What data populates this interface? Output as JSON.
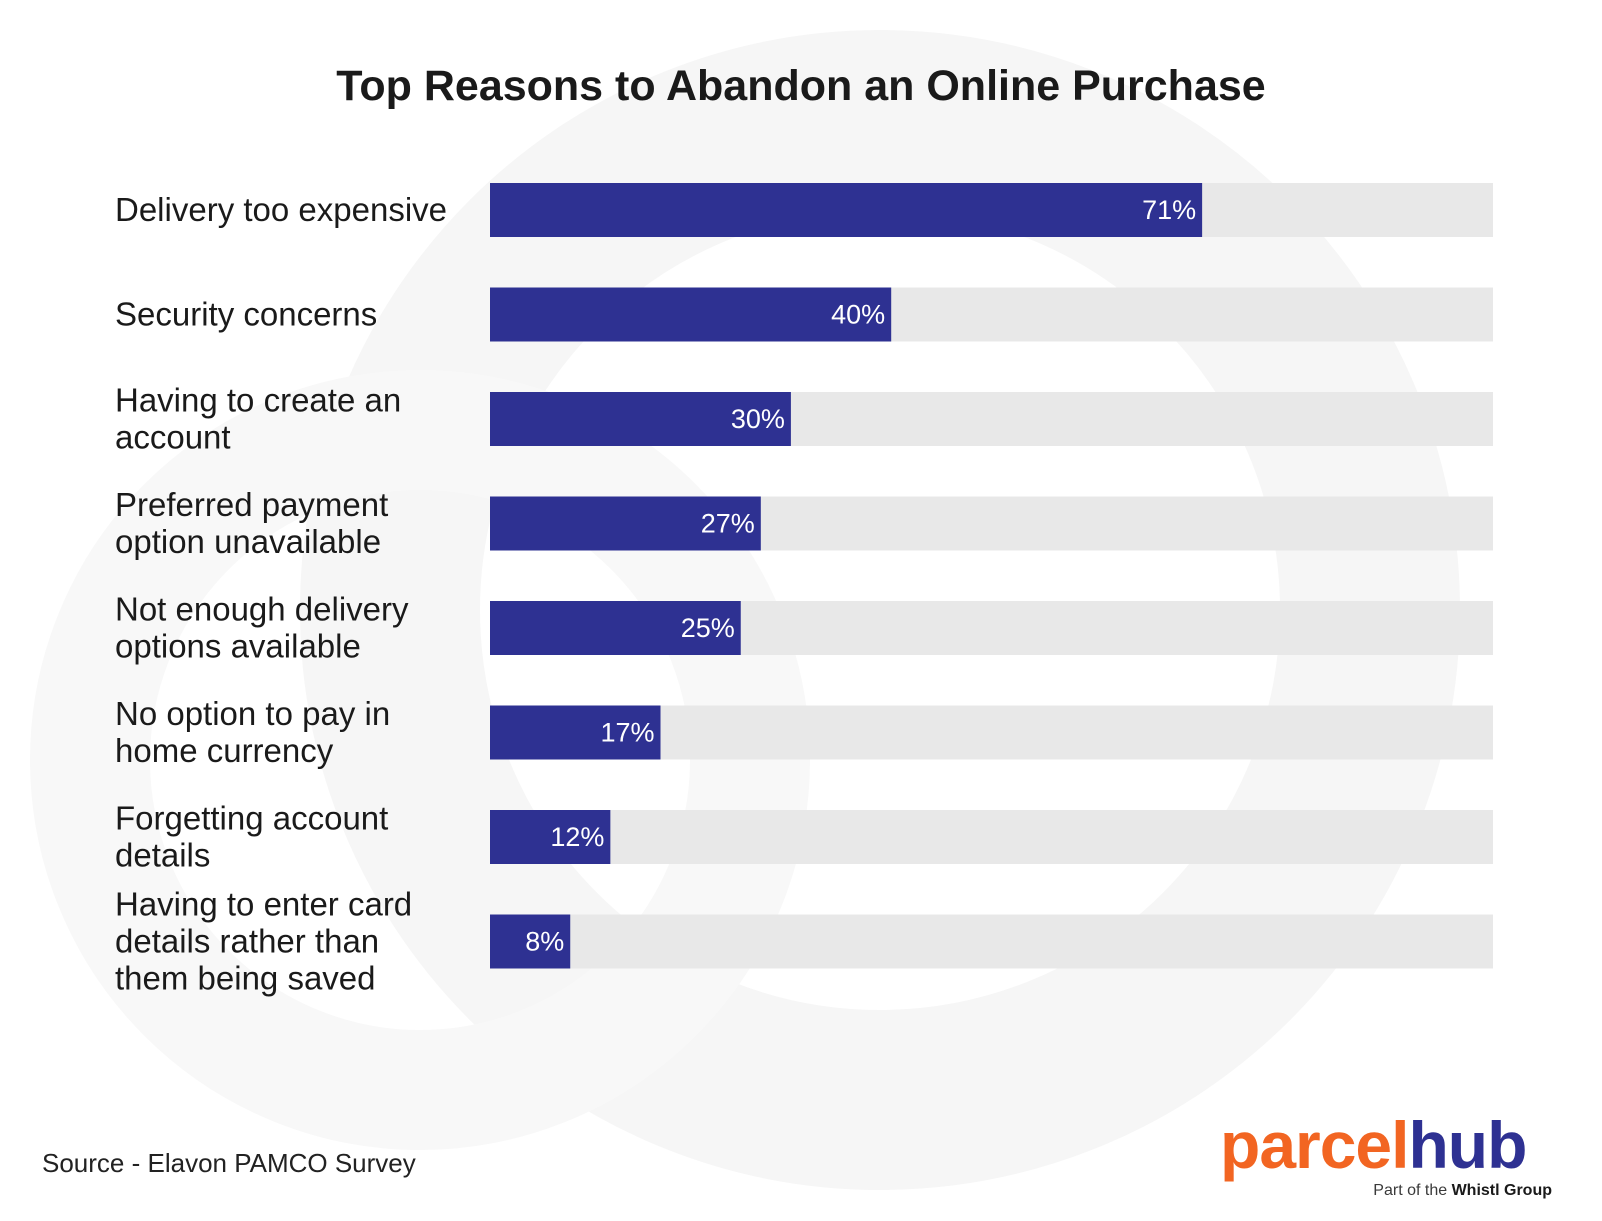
{
  "chart_data": {
    "type": "bar",
    "orientation": "horizontal",
    "title": "Top Reasons to Abandon an Online Purchase",
    "categories": [
      [
        "Delivery too expensive"
      ],
      [
        "Security concerns"
      ],
      [
        "Having to create an",
        "account"
      ],
      [
        "Preferred payment",
        "option unavailable"
      ],
      [
        "Not enough delivery",
        "options available"
      ],
      [
        "No option to pay in",
        "home currency"
      ],
      [
        "Forgetting account",
        "details"
      ],
      [
        "Having to enter card",
        "details rather than",
        "them being saved"
      ]
    ],
    "values": [
      71,
      40,
      30,
      27,
      25,
      17,
      12,
      8
    ],
    "value_labels": [
      "71%",
      "40%",
      "30%",
      "27%",
      "25%",
      "17%",
      "12%",
      "8%"
    ],
    "xlim": [
      0,
      100
    ],
    "grid": false,
    "legend": "none",
    "colors": {
      "bar": "#2e3192",
      "track": "#e8e8e8",
      "label_text": "#ffffff"
    }
  },
  "source": "Source - Elavon PAMCO Survey",
  "logo": {
    "part1": "parcel",
    "part2": "hub",
    "tagline_prefix": "Part of the ",
    "tagline_brand": "Whistl Group",
    "colors": {
      "part1": "#f26522",
      "part2": "#2e3192"
    }
  }
}
